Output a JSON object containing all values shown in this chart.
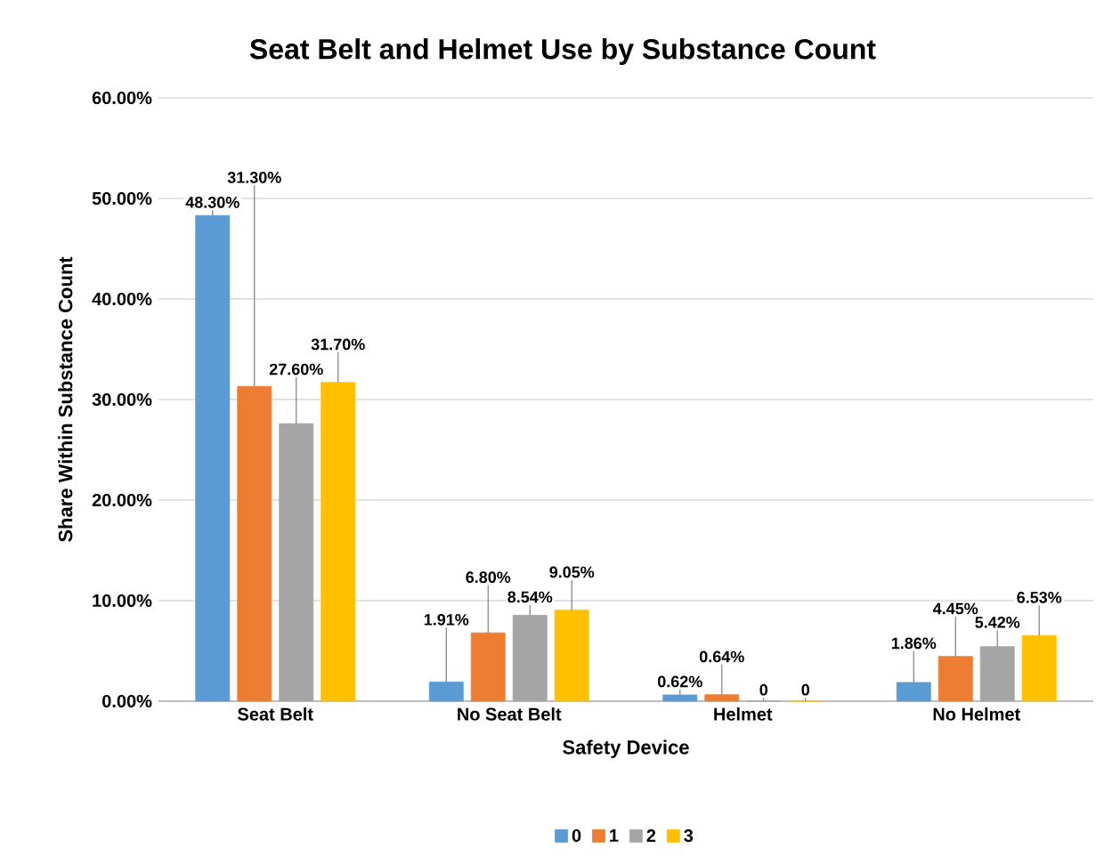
{
  "chart_data": {
    "type": "bar",
    "title": "Seat Belt and Helmet Use by Substance Count",
    "xlabel": "Safety Device",
    "ylabel": "Share Within Substance Count",
    "categories": [
      "Seat Belt",
      "No Seat Belt",
      "Helmet",
      "No Helmet"
    ],
    "series": [
      {
        "name": "0",
        "color": "#5b9bd5",
        "values": [
          48.3,
          1.91,
          0.62,
          1.86
        ],
        "value_labels": [
          "48.30%",
          "1.91%",
          "0.62%",
          "1.86%"
        ]
      },
      {
        "name": "1",
        "color": "#ed7d31",
        "values": [
          31.3,
          6.8,
          0.64,
          4.45
        ],
        "value_labels": [
          "31.30%",
          "6.80%",
          "0.64%",
          "4.45%"
        ]
      },
      {
        "name": "2",
        "color": "#a5a5a5",
        "values": [
          27.6,
          8.54,
          0,
          5.42
        ],
        "value_labels": [
          "27.60%",
          "8.54%",
          "0",
          "5.42%"
        ]
      },
      {
        "name": "3",
        "color": "#ffc000",
        "values": [
          31.7,
          9.05,
          0,
          6.53
        ],
        "value_labels": [
          "31.70%",
          "9.05%",
          "0",
          "6.53%"
        ]
      }
    ],
    "ylim": [
      0,
      60
    ],
    "yticks": [
      {
        "value": 0,
        "label": "0.00%"
      },
      {
        "value": 10,
        "label": "10.00%"
      },
      {
        "value": 20,
        "label": "20.00%"
      },
      {
        "value": 30,
        "label": "30.00%"
      },
      {
        "value": 40,
        "label": "40.00%"
      },
      {
        "value": 50,
        "label": "50.00%"
      },
      {
        "value": 60,
        "label": "60.00%"
      }
    ],
    "grid": "y",
    "legend": "bottom"
  }
}
